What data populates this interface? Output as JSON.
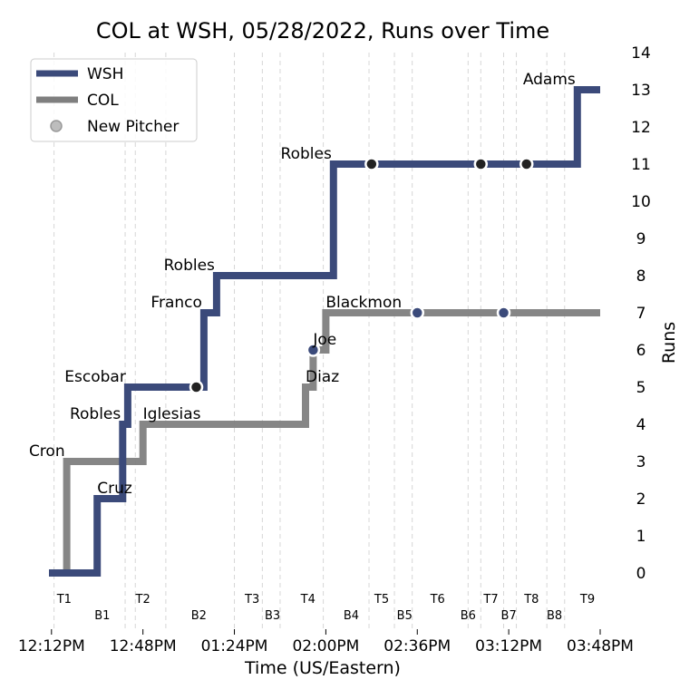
{
  "chart_data": {
    "type": "line",
    "title": "COL at WSH, 05/28/2022, Runs over Time",
    "xlabel": "Time (US/Eastern)",
    "ylabel": "Runs",
    "ylim": [
      0,
      14
    ],
    "y_ticks": [
      0,
      1,
      2,
      3,
      4,
      5,
      6,
      7,
      8,
      9,
      10,
      11,
      12,
      13,
      14
    ],
    "x_ticks": [
      "12:12PM",
      "12:48PM",
      "01:24PM",
      "02:00PM",
      "02:36PM",
      "03:12PM",
      "03:48PM"
    ],
    "x_tick_minutes": [
      732,
      768,
      804,
      840,
      876,
      912,
      948
    ],
    "xlim_minutes": [
      731,
      948
    ],
    "grid": "vertical dashed lines at half-inning boundaries",
    "legend_position": "upper-left",
    "legend": [
      "WSH",
      "COL",
      "New Pitcher"
    ],
    "colors": {
      "WSH": "#3b4a7a",
      "COL": "#7f7f7f",
      "new_pitcher_marker": "#bdbdbd"
    },
    "innings": [
      {
        "label": "T1",
        "minute": 737,
        "row": 1
      },
      {
        "label": "B1",
        "minute": 752,
        "row": 2
      },
      {
        "label": "T2",
        "minute": 768,
        "row": 1
      },
      {
        "label": "B2",
        "minute": 790,
        "row": 2
      },
      {
        "label": "T3",
        "minute": 811,
        "row": 1
      },
      {
        "label": "B3",
        "minute": 819,
        "row": 2
      },
      {
        "label": "T4",
        "minute": 833,
        "row": 1
      },
      {
        "label": "B4",
        "minute": 850,
        "row": 2
      },
      {
        "label": "T5",
        "minute": 862,
        "row": 1
      },
      {
        "label": "B5",
        "minute": 871,
        "row": 2
      },
      {
        "label": "T6",
        "minute": 884,
        "row": 1
      },
      {
        "label": "B6",
        "minute": 896,
        "row": 2
      },
      {
        "label": "T7",
        "minute": 905,
        "row": 1
      },
      {
        "label": "B7",
        "minute": 912,
        "row": 2
      },
      {
        "label": "T8",
        "minute": 921,
        "row": 1
      },
      {
        "label": "B8",
        "minute": 930,
        "row": 2
      },
      {
        "label": "T9",
        "minute": 943,
        "row": 1
      }
    ],
    "inning_boundaries_minutes": [
      733,
      761,
      765,
      777,
      804,
      815,
      822,
      839,
      857,
      867,
      874,
      896,
      901,
      910,
      915,
      927,
      934
    ],
    "series": [
      {
        "name": "WSH",
        "points": [
          [
            731,
            0
          ],
          [
            750,
            0
          ],
          [
            750,
            2
          ],
          [
            760,
            2
          ],
          [
            760,
            4
          ],
          [
            762,
            4
          ],
          [
            762,
            5
          ],
          [
            792,
            5
          ],
          [
            792,
            7
          ],
          [
            797,
            7
          ],
          [
            797,
            8
          ],
          [
            843,
            8
          ],
          [
            843,
            11
          ],
          [
            939,
            11
          ],
          [
            939,
            13
          ],
          [
            948,
            13
          ]
        ],
        "new_pitcher": [
          [
            789,
            5
          ],
          [
            858,
            11
          ],
          [
            901,
            11
          ],
          [
            919,
            11
          ]
        ]
      },
      {
        "name": "COL",
        "points": [
          [
            731,
            0
          ],
          [
            738,
            0
          ],
          [
            738,
            3
          ],
          [
            768,
            3
          ],
          [
            768,
            4
          ],
          [
            832,
            4
          ],
          [
            832,
            5
          ],
          [
            835,
            5
          ],
          [
            835,
            6
          ],
          [
            840,
            6
          ],
          [
            840,
            7
          ],
          [
            948,
            7
          ]
        ],
        "new_pitcher": [
          [
            835,
            6
          ],
          [
            876,
            7
          ],
          [
            910,
            7
          ]
        ]
      }
    ],
    "annotations": [
      {
        "text": "Cron",
        "x": 738,
        "y": 3,
        "anchor": "end"
      },
      {
        "text": "Cruz",
        "x": 750,
        "y": 2,
        "anchor": "start"
      },
      {
        "text": "Robles",
        "x": 760,
        "y": 4,
        "anchor": "end"
      },
      {
        "text": "Escobar",
        "x": 762,
        "y": 5,
        "anchor": "end"
      },
      {
        "text": "Iglesias",
        "x": 768,
        "y": 4,
        "anchor": "start"
      },
      {
        "text": "Franco",
        "x": 792,
        "y": 7,
        "anchor": "end"
      },
      {
        "text": "Robles",
        "x": 797,
        "y": 8,
        "anchor": "end"
      },
      {
        "text": "Diaz",
        "x": 832,
        "y": 5,
        "anchor": "start"
      },
      {
        "text": "Joe",
        "x": 835,
        "y": 6,
        "anchor": "start"
      },
      {
        "text": "Blackmon",
        "x": 840,
        "y": 7,
        "anchor": "start"
      },
      {
        "text": "Robles",
        "x": 843,
        "y": 11,
        "anchor": "end"
      },
      {
        "text": "Adams",
        "x": 939,
        "y": 13,
        "anchor": "end"
      }
    ]
  }
}
